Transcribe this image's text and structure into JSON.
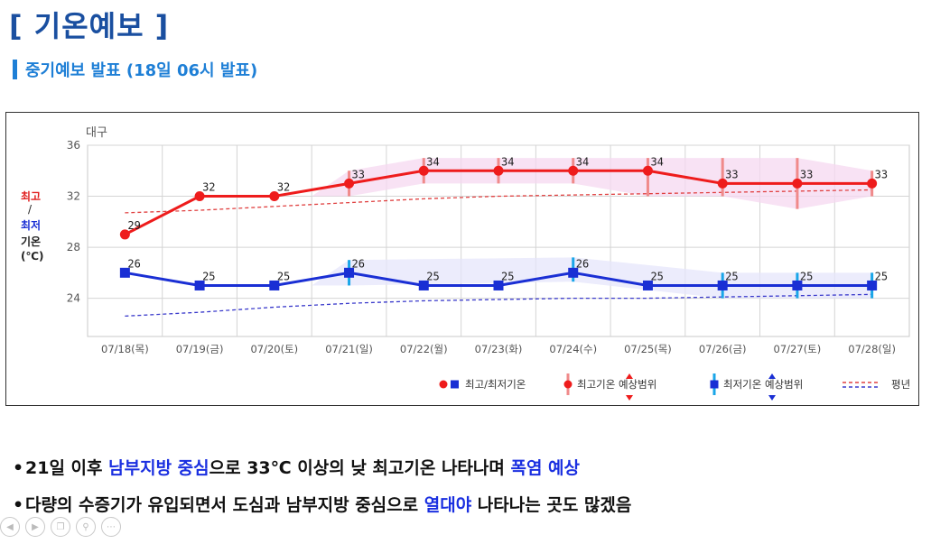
{
  "header": {
    "title": "[ 기온예보 ]",
    "subtitle": "중기예보 발표 (18일 06시 발표)"
  },
  "chart_data": {
    "type": "line",
    "title": "대구",
    "ylabel_parts": [
      "최고",
      "/",
      "최저",
      "기온",
      "(℃)"
    ],
    "ylim": [
      21,
      36
    ],
    "yticks": [
      24,
      28,
      32,
      36
    ],
    "grid": true,
    "categories": [
      "07/18(목)",
      "07/19(금)",
      "07/20(토)",
      "07/21(일)",
      "07/22(월)",
      "07/23(화)",
      "07/24(수)",
      "07/25(목)",
      "07/26(금)",
      "07/27(토)",
      "07/28(일)"
    ],
    "series": [
      {
        "key": "max",
        "values": [
          29,
          32,
          32,
          33,
          34,
          34,
          34,
          34,
          33,
          33,
          33
        ],
        "labels": [
          "29",
          "32",
          "32",
          "33",
          "34",
          "34",
          "34",
          "34",
          "33",
          "33",
          "33"
        ],
        "range_low": [
          null,
          null,
          null,
          32,
          33,
          33,
          33,
          32,
          32,
          31,
          32
        ],
        "range_high": [
          null,
          null,
          null,
          34,
          35,
          35,
          35,
          35,
          35,
          35,
          34
        ],
        "normal": [
          30.7,
          30.9,
          31.2,
          31.5,
          31.8,
          32.0,
          32.1,
          32.2,
          32.3,
          32.4,
          32.5
        ]
      },
      {
        "key": "min",
        "values": [
          26,
          25,
          25,
          26,
          25,
          25,
          26,
          25,
          25,
          25,
          25
        ],
        "labels": [
          "26",
          "25",
          "25",
          "26",
          "25",
          "25",
          "26",
          "25",
          "25",
          "25",
          "25"
        ],
        "range_low": [
          null,
          null,
          null,
          25,
          null,
          null,
          25.3,
          null,
          24,
          24,
          24
        ],
        "range_high": [
          null,
          null,
          null,
          27,
          null,
          null,
          27.2,
          null,
          26,
          26,
          26
        ],
        "normal": [
          22.6,
          22.9,
          23.3,
          23.6,
          23.8,
          23.9,
          24.0,
          24.0,
          24.1,
          24.2,
          24.3
        ]
      }
    ],
    "legend_placement": "bottom-right",
    "legend": [
      "최고/최저기온",
      "최고기온 예상범위",
      "최저기온 예상범위",
      "평년"
    ],
    "colors": {
      "max": "#ee1c1c",
      "min": "#1a2fd4",
      "max_range": "#f08a8a",
      "min_range": "#1aa6e8",
      "max_band": "#f5d8f0",
      "min_band": "#e6e6fb",
      "max_normal": "#e04040",
      "min_normal": "#3a3acb"
    }
  },
  "bullets": [
    {
      "parts": [
        {
          "text": "21일 이후 ",
          "hl": false
        },
        {
          "text": "남부지방 중심",
          "hl": true
        },
        {
          "text": "으로 33℃ 이상의 낮 최고기온 나타나며 ",
          "hl": false
        },
        {
          "text": "폭염 예상",
          "hl": true
        }
      ]
    },
    {
      "parts": [
        {
          "text": "다량의 수증기가 유입되면서 도심과 남부지방 중심으로 ",
          "hl": false
        },
        {
          "text": "열대야",
          "hl": true
        },
        {
          "text": " 나타나는 곳도 많겠음",
          "hl": false
        }
      ]
    }
  ],
  "controls": [
    "prev-icon",
    "play-icon",
    "copy-icon",
    "search-icon",
    "more-icon"
  ]
}
